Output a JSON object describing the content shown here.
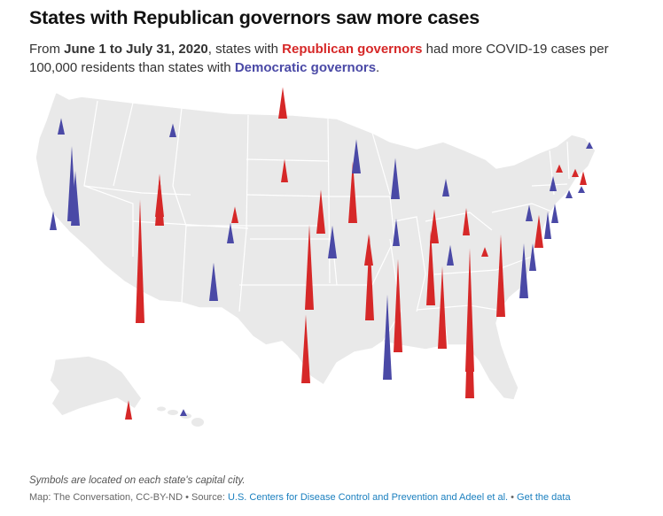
{
  "title": "States with Republican governors saw more cases",
  "subtitle": {
    "part1": "From ",
    "date_range": "June 1 to July 31, 2020",
    "part2": ", states with ",
    "rep_label": "Republican governors",
    "part3": " had more COVID-19 cases per 100,000 residents than states with ",
    "dem_label": "Democratic governors",
    "part4": "."
  },
  "note": "Symbols are located on each state's capital city.",
  "footer": {
    "credit": "Map: The Conversation, CC-BY-ND",
    "sep1": " • ",
    "source_label": "Source: ",
    "source_link": "U.S. Centers for Disease Control and Prevention and Adeel et al.",
    "sep2": " • ",
    "data_link": "Get the data"
  },
  "colors": {
    "republican": "#d62828",
    "democratic": "#4a49a6",
    "land": "#e9e9e9",
    "border": "#ffffff"
  },
  "spikes": [
    {
      "state": "WA",
      "party": "D",
      "level": 0.12
    },
    {
      "state": "OR",
      "party": "D",
      "level": 0.14
    },
    {
      "state": "CA",
      "party": "D",
      "level": 0.4
    },
    {
      "state": "NV",
      "party": "D",
      "level": 0.55
    },
    {
      "state": "ID",
      "party": "R",
      "level": 0.3
    },
    {
      "state": "MT",
      "party": "D",
      "level": 0.1
    },
    {
      "state": "WY",
      "party": "R",
      "level": 0.12
    },
    {
      "state": "UT",
      "party": "R",
      "level": 0.38
    },
    {
      "state": "AZ",
      "party": "R",
      "level": 0.9
    },
    {
      "state": "CO",
      "party": "D",
      "level": 0.15
    },
    {
      "state": "NM",
      "party": "D",
      "level": 0.28
    },
    {
      "state": "ND",
      "party": "R",
      "level": 0.23
    },
    {
      "state": "SD",
      "party": "R",
      "level": 0.17
    },
    {
      "state": "NE",
      "party": "R",
      "level": 0.32
    },
    {
      "state": "KS",
      "party": "D",
      "level": 0.24
    },
    {
      "state": "OK",
      "party": "R",
      "level": 0.62
    },
    {
      "state": "TX",
      "party": "R",
      "level": 0.5
    },
    {
      "state": "MN",
      "party": "D",
      "level": 0.25
    },
    {
      "state": "IA",
      "party": "R",
      "level": 0.45
    },
    {
      "state": "MO",
      "party": "R",
      "level": 0.23
    },
    {
      "state": "AR",
      "party": "R",
      "level": 0.62
    },
    {
      "state": "LA",
      "party": "D",
      "level": 0.62
    },
    {
      "state": "WI",
      "party": "D",
      "level": 0.3
    },
    {
      "state": "IL",
      "party": "D",
      "level": 0.2
    },
    {
      "state": "MI",
      "party": "D",
      "level": 0.13
    },
    {
      "state": "IN",
      "party": "R",
      "level": 0.25
    },
    {
      "state": "KY",
      "party": "D",
      "level": 0.15
    },
    {
      "state": "TN",
      "party": "R",
      "level": 0.55
    },
    {
      "state": "MS",
      "party": "R",
      "level": 0.68
    },
    {
      "state": "AL",
      "party": "R",
      "level": 0.6
    },
    {
      "state": "OH",
      "party": "R",
      "level": 0.2
    },
    {
      "state": "GA",
      "party": "R",
      "level": 0.9
    },
    {
      "state": "FL",
      "party": "R",
      "level": 1.0
    },
    {
      "state": "SC",
      "party": "R",
      "level": 0.6
    },
    {
      "state": "NC",
      "party": "D",
      "level": 0.4
    },
    {
      "state": "VA",
      "party": "D",
      "level": 0.2
    },
    {
      "state": "WV",
      "party": "R",
      "level": 0.07
    },
    {
      "state": "MD",
      "party": "R",
      "level": 0.24
    },
    {
      "state": "PA",
      "party": "D",
      "level": 0.12
    },
    {
      "state": "DE",
      "party": "D",
      "level": 0.2
    },
    {
      "state": "NJ",
      "party": "D",
      "level": 0.14
    },
    {
      "state": "NY",
      "party": "D",
      "level": 0.11
    },
    {
      "state": "CT",
      "party": "D",
      "level": 0.06
    },
    {
      "state": "RI",
      "party": "D",
      "level": 0.05
    },
    {
      "state": "MA",
      "party": "R",
      "level": 0.1
    },
    {
      "state": "VT",
      "party": "R",
      "level": 0.06
    },
    {
      "state": "NH",
      "party": "R",
      "level": 0.06
    },
    {
      "state": "ME",
      "party": "D",
      "level": 0.05
    },
    {
      "state": "AK",
      "party": "R",
      "level": 0.14
    },
    {
      "state": "HI",
      "party": "D",
      "level": 0.05
    }
  ]
}
